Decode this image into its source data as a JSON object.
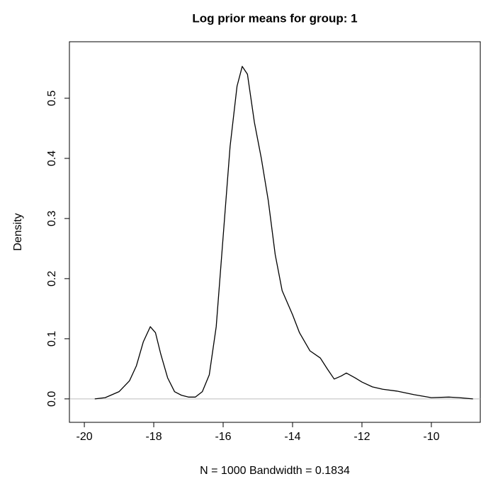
{
  "chart_data": {
    "type": "line",
    "title": "Log prior means for group: 1",
    "x_label": "N = 1000   Bandwidth = 0.1834",
    "y_label": "Density",
    "x": [
      -19.7,
      -19.4,
      -19.0,
      -18.7,
      -18.5,
      -18.3,
      -18.1,
      -17.95,
      -17.8,
      -17.6,
      -17.4,
      -17.2,
      -17.0,
      -16.8,
      -16.6,
      -16.4,
      -16.2,
      -16.0,
      -15.8,
      -15.6,
      -15.45,
      -15.3,
      -15.1,
      -14.9,
      -14.7,
      -14.5,
      -14.3,
      -14.0,
      -13.8,
      -13.5,
      -13.2,
      -13.0,
      -12.8,
      -12.6,
      -12.45,
      -12.2,
      -12.0,
      -11.7,
      -11.4,
      -11.0,
      -10.5,
      -10.0,
      -9.5,
      -9.2,
      -8.8
    ],
    "series": [
      {
        "color": "#000000",
        "values": [
          0,
          0.002,
          0.012,
          0.03,
          0.055,
          0.095,
          0.12,
          0.11,
          0.075,
          0.035,
          0.012,
          0.006,
          0.003,
          0.003,
          0.012,
          0.04,
          0.12,
          0.27,
          0.42,
          0.52,
          0.553,
          0.54,
          0.46,
          0.4,
          0.33,
          0.24,
          0.18,
          0.14,
          0.11,
          0.08,
          0.068,
          0.05,
          0.033,
          0.038,
          0.043,
          0.035,
          0.028,
          0.02,
          0.016,
          0.013,
          0.007,
          0.002,
          0.003,
          0.002,
          0
        ]
      }
    ],
    "xlim": [
      -20.43,
      -8.59
    ],
    "ylim": [
      -0.039,
      0.594
    ],
    "xticks": [
      -20,
      -18,
      -16,
      -14,
      -12,
      -10
    ],
    "yticks": [
      {
        "value": 0,
        "label": "0.0"
      },
      0.1,
      0.2,
      0.3,
      0.4,
      0.5
    ]
  }
}
